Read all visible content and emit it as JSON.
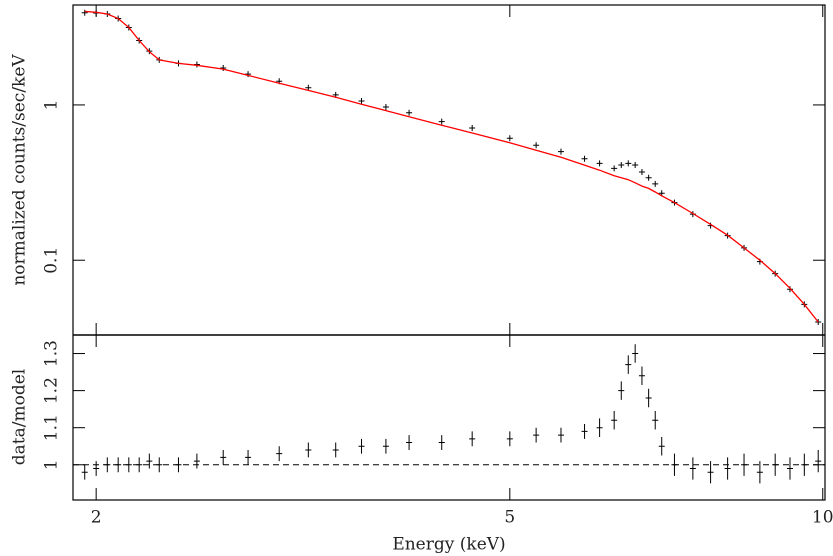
{
  "chart_data": [
    {
      "type": "spectrum",
      "ylabel": "normalized counts/sec/keV",
      "log_x": true,
      "log_y": true,
      "xlim": [
        1.9,
        10.05
      ],
      "ylim": [
        0.033,
        4.4
      ],
      "yticks": [
        0.1,
        1
      ],
      "x": [
        1.95,
        2.0,
        2.05,
        2.1,
        2.15,
        2.2,
        2.25,
        2.3,
        2.4,
        2.5,
        2.65,
        2.8,
        3.0,
        3.2,
        3.4,
        3.6,
        3.8,
        4.0,
        4.3,
        4.6,
        5.0,
        5.3,
        5.6,
        5.9,
        6.1,
        6.3,
        6.4,
        6.5,
        6.6,
        6.7,
        6.8,
        6.9,
        7.0,
        7.2,
        7.5,
        7.8,
        8.1,
        8.4,
        8.7,
        9.0,
        9.3,
        9.6,
        9.9
      ],
      "series": [
        {
          "color": "#000000",
          "style": "points",
          "values": [
            3.92,
            3.91,
            3.85,
            3.6,
            3.15,
            2.6,
            2.22,
            1.95,
            1.85,
            1.82,
            1.73,
            1.58,
            1.42,
            1.29,
            1.16,
            1.06,
            0.97,
            0.89,
            0.78,
            0.71,
            0.61,
            0.55,
            0.5,
            0.45,
            0.42,
            0.39,
            0.41,
            0.42,
            0.41,
            0.37,
            0.34,
            0.31,
            0.27,
            0.235,
            0.198,
            0.167,
            0.144,
            0.12,
            0.098,
            0.082,
            0.065,
            0.052,
            0.04
          ]
        },
        {
          "color": "#ff0000",
          "style": "step",
          "values": [
            4.0,
            3.95,
            3.85,
            3.6,
            3.15,
            2.6,
            2.2,
            1.95,
            1.85,
            1.8,
            1.7,
            1.55,
            1.38,
            1.24,
            1.12,
            1.01,
            0.92,
            0.84,
            0.74,
            0.66,
            0.57,
            0.51,
            0.46,
            0.41,
            0.38,
            0.35,
            0.34,
            0.33,
            0.315,
            0.3,
            0.29,
            0.275,
            0.26,
            0.235,
            0.2,
            0.17,
            0.145,
            0.12,
            0.1,
            0.082,
            0.066,
            0.052,
            0.04
          ]
        }
      ]
    },
    {
      "type": "errorbar",
      "ylabel": "data/model",
      "xlabel": "Energy (keV)",
      "log_x": true,
      "xlim": [
        1.9,
        10.05
      ],
      "ylim": [
        0.905,
        1.35
      ],
      "xticks": [
        2,
        5,
        10
      ],
      "yticks": [
        1,
        1.1,
        1.2,
        1.3
      ],
      "reference_line": 1,
      "color": "#000000",
      "x": [
        1.95,
        2.0,
        2.05,
        2.1,
        2.15,
        2.2,
        2.25,
        2.3,
        2.4,
        2.5,
        2.65,
        2.8,
        3.0,
        3.2,
        3.4,
        3.6,
        3.8,
        4.0,
        4.3,
        4.6,
        5.0,
        5.3,
        5.6,
        5.9,
        6.1,
        6.3,
        6.4,
        6.5,
        6.6,
        6.7,
        6.8,
        6.9,
        7.0,
        7.2,
        7.5,
        7.8,
        8.1,
        8.4,
        8.7,
        9.0,
        9.3,
        9.6,
        9.9
      ],
      "values": [
        0.98,
        0.99,
        1.0,
        1.0,
        1.0,
        1.0,
        1.01,
        1.0,
        1.0,
        1.01,
        1.02,
        1.02,
        1.03,
        1.04,
        1.04,
        1.05,
        1.05,
        1.06,
        1.06,
        1.07,
        1.07,
        1.08,
        1.08,
        1.09,
        1.1,
        1.12,
        1.2,
        1.27,
        1.3,
        1.24,
        1.18,
        1.12,
        1.05,
        1.0,
        0.99,
        0.98,
        0.99,
        1.0,
        0.98,
        1.0,
        0.99,
        1.0,
        1.01
      ],
      "errors": [
        0.02,
        0.02,
        0.02,
        0.02,
        0.02,
        0.02,
        0.02,
        0.02,
        0.02,
        0.02,
        0.02,
        0.02,
        0.02,
        0.02,
        0.02,
        0.02,
        0.02,
        0.02,
        0.02,
        0.02,
        0.02,
        0.02,
        0.02,
        0.02,
        0.025,
        0.025,
        0.025,
        0.025,
        0.025,
        0.025,
        0.025,
        0.025,
        0.025,
        0.03,
        0.03,
        0.03,
        0.03,
        0.03,
        0.03,
        0.03,
        0.03,
        0.03,
        0.03
      ]
    }
  ]
}
